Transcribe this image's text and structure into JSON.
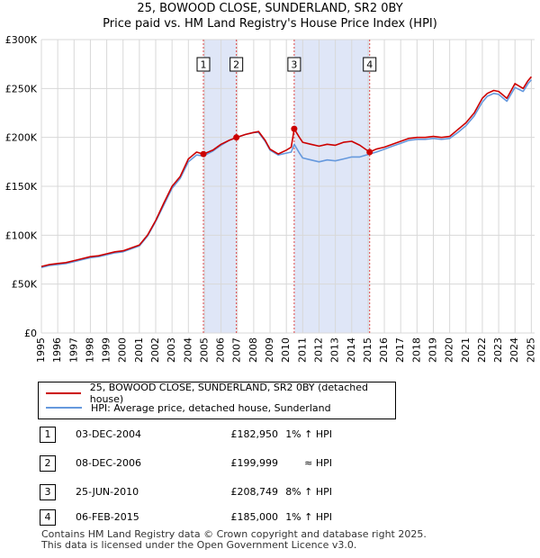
{
  "header": {
    "title_line1": "25, BOWOOD CLOSE, SUNDERLAND, SR2 0BY",
    "title_line2": "Price paid vs. HM Land Registry's House Price Index (HPI)"
  },
  "colors": {
    "property": "#cc0000",
    "hpi": "#6699dd",
    "shade": "#dfe6f7",
    "vline": "#dd4444",
    "grid": "#d8d8d8"
  },
  "legend": {
    "property_label": "25, BOWOOD CLOSE, SUNDERLAND, SR2 0BY (detached house)",
    "hpi_label": "HPI: Average price, detached house, Sunderland"
  },
  "transactions": [
    {
      "num": "1",
      "date": "03-DEC-2004",
      "price": "£182,950",
      "hpi": "1% ↑ HPI"
    },
    {
      "num": "2",
      "date": "08-DEC-2006",
      "price": "£199,999",
      "hpi": "≈ HPI"
    },
    {
      "num": "3",
      "date": "25-JUN-2010",
      "price": "£208,749",
      "hpi": "8% ↑ HPI"
    },
    {
      "num": "4",
      "date": "06-FEB-2015",
      "price": "£185,000",
      "hpi": "1% ↑ HPI"
    }
  ],
  "footer": {
    "line1": "Contains HM Land Registry data © Crown copyright and database right 2025.",
    "line2": "This data is licensed under the Open Government Licence v3.0."
  },
  "chart_data": {
    "type": "line",
    "title": "25, BOWOOD CLOSE, SUNDERLAND, SR2 0BY",
    "subtitle": "Price paid vs. HM Land Registry's House Price Index (HPI)",
    "xlabel": "",
    "ylabel": "",
    "xlim": [
      1995,
      2025.2
    ],
    "ylim": [
      0,
      300000
    ],
    "x_ticks": [
      1995,
      1996,
      1997,
      1998,
      1999,
      2000,
      2001,
      2002,
      2003,
      2004,
      2005,
      2006,
      2007,
      2008,
      2009,
      2010,
      2011,
      2012,
      2013,
      2014,
      2015,
      2016,
      2017,
      2018,
      2019,
      2020,
      2021,
      2022,
      2023,
      2024,
      2025
    ],
    "y_ticks": [
      {
        "value": 0,
        "label": "£0"
      },
      {
        "value": 50000,
        "label": "£50K"
      },
      {
        "value": 100000,
        "label": "£100K"
      },
      {
        "value": 150000,
        "label": "£150K"
      },
      {
        "value": 200000,
        "label": "£200K"
      },
      {
        "value": 250000,
        "label": "£250K"
      },
      {
        "value": 300000,
        "label": "£300K"
      }
    ],
    "grid": true,
    "shaded_periods": [
      [
        2004.92,
        2006.94
      ],
      [
        2010.48,
        2015.1
      ]
    ],
    "markers": [
      {
        "label": "1",
        "x": 2004.92,
        "y": 182950
      },
      {
        "label": "2",
        "x": 2006.94,
        "y": 199999
      },
      {
        "label": "3",
        "x": 2010.48,
        "y": 208749
      },
      {
        "label": "4",
        "x": 2015.1,
        "y": 185000
      }
    ],
    "series": [
      {
        "name": "25, BOWOOD CLOSE, SUNDERLAND, SR2 0BY (detached house)",
        "color": "#cc0000",
        "x": [
          1995,
          1995.5,
          1996,
          1996.5,
          1997,
          1997.5,
          1998,
          1998.5,
          1999,
          1999.5,
          2000,
          2000.5,
          2001,
          2001.5,
          2002,
          2002.5,
          2003,
          2003.5,
          2004,
          2004.5,
          2004.92,
          2005.5,
          2006,
          2006.5,
          2006.94,
          2007.5,
          2008,
          2008.3,
          2008.7,
          2009,
          2009.5,
          2010,
          2010.3,
          2010.48,
          2010.8,
          2011,
          2011.5,
          2012,
          2012.5,
          2013,
          2013.5,
          2014,
          2014.5,
          2015.1,
          2015.5,
          2016,
          2016.5,
          2017,
          2017.5,
          2018,
          2018.5,
          2019,
          2019.5,
          2020,
          2020.5,
          2021,
          2021.5,
          2022,
          2022.3,
          2022.7,
          2023,
          2023.5,
          2024,
          2024.5,
          2024.8,
          2025
        ],
        "y": [
          68000,
          70000,
          71000,
          72000,
          74000,
          76000,
          78000,
          79000,
          81000,
          83000,
          84000,
          87000,
          90000,
          100000,
          115000,
          133000,
          150000,
          160000,
          178000,
          185000,
          182950,
          187000,
          193000,
          197000,
          199999,
          203000,
          205000,
          206000,
          197000,
          188000,
          183000,
          187000,
          190000,
          208749,
          200000,
          195000,
          193000,
          191000,
          193000,
          192000,
          195000,
          196000,
          192000,
          185000,
          188000,
          190000,
          193000,
          196000,
          199000,
          200000,
          200000,
          201000,
          200000,
          201000,
          208000,
          215000,
          225000,
          240000,
          245000,
          248000,
          247000,
          240000,
          255000,
          250000,
          258000,
          262000
        ]
      },
      {
        "name": "HPI: Average price, detached house, Sunderland",
        "color": "#6699dd",
        "x": [
          1995,
          1995.5,
          1996,
          1996.5,
          1997,
          1997.5,
          1998,
          1998.5,
          1999,
          1999.5,
          2000,
          2000.5,
          2001,
          2001.5,
          2002,
          2002.5,
          2003,
          2003.5,
          2004,
          2004.5,
          2004.92,
          2005.5,
          2006,
          2006.5,
          2006.94,
          2007.5,
          2008,
          2008.3,
          2008.7,
          2009,
          2009.5,
          2010,
          2010.3,
          2010.48,
          2010.8,
          2011,
          2011.5,
          2012,
          2012.5,
          2013,
          2013.5,
          2014,
          2014.5,
          2015.1,
          2015.5,
          2016,
          2016.5,
          2017,
          2017.5,
          2018,
          2018.5,
          2019,
          2019.5,
          2020,
          2020.5,
          2021,
          2021.5,
          2022,
          2022.3,
          2022.7,
          2023,
          2023.5,
          2024,
          2024.5,
          2024.8,
          2025
        ],
        "y": [
          67000,
          69000,
          70000,
          71000,
          73000,
          75000,
          77000,
          78000,
          80000,
          82000,
          83000,
          86000,
          89000,
          99000,
          114000,
          131000,
          148000,
          158000,
          175000,
          182000,
          181000,
          186000,
          192000,
          197000,
          200000,
          203000,
          205000,
          205000,
          196000,
          187000,
          182000,
          184000,
          185000,
          193000,
          184000,
          179000,
          177000,
          175000,
          177000,
          176000,
          178000,
          180000,
          180000,
          183000,
          185000,
          188000,
          191000,
          194000,
          197000,
          198000,
          198000,
          199000,
          198000,
          199000,
          205000,
          212000,
          222000,
          236000,
          242000,
          245000,
          244000,
          237000,
          251000,
          247000,
          255000,
          259000
        ]
      }
    ]
  }
}
